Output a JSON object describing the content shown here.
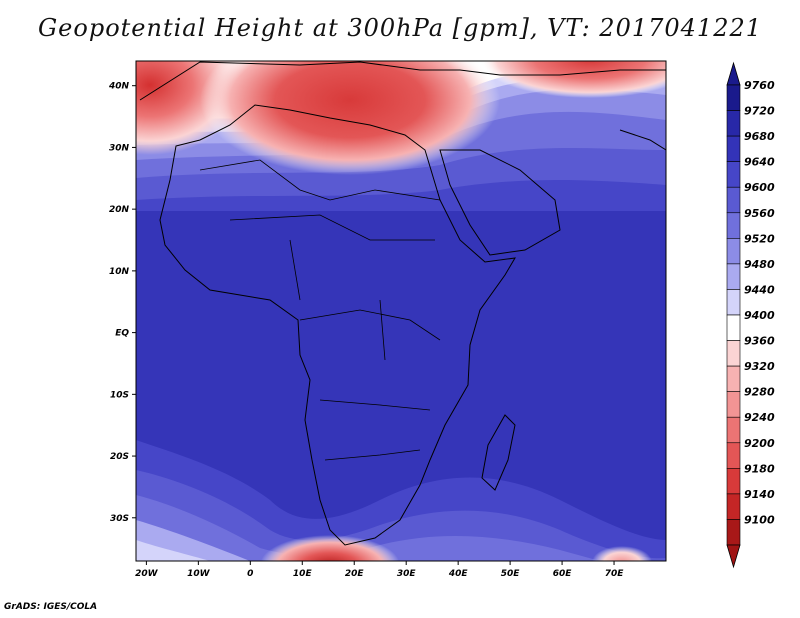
{
  "title": "Geopotential Height at 300hPa [gpm], VT: 2017041221",
  "credit": "GrADS: IGES/COLA",
  "map": {
    "lat_labels": [
      "40N",
      "30N",
      "20N",
      "10N",
      "EQ",
      "10S",
      "20S",
      "30S"
    ],
    "lon_labels": [
      "20W",
      "10W",
      "0",
      "10E",
      "20E",
      "30E",
      "40E",
      "50E",
      "60E",
      "70E"
    ],
    "lat_range": [
      -37,
      44
    ],
    "lon_range": [
      -22,
      80
    ]
  },
  "colorbar": {
    "levels": [
      "9760",
      "9720",
      "9680",
      "9640",
      "9600",
      "9560",
      "9520",
      "9480",
      "9440",
      "9400",
      "9360",
      "9320",
      "9280",
      "9240",
      "9200",
      "9180",
      "9140",
      "9100"
    ],
    "colors": [
      "#1a1a8c",
      "#2828a8",
      "#3333b8",
      "#4646c8",
      "#5a5ad2",
      "#7070dc",
      "#8c8ce6",
      "#aaaaf0",
      "#d4d4fa",
      "#ffffff",
      "#fbd4d4",
      "#f7b2b2",
      "#f29494",
      "#ec7474",
      "#e35656",
      "#d83a3a",
      "#c42626",
      "#a81818"
    ],
    "max_arrow_color": "#1a1a8c",
    "min_arrow_color": "#a01414"
  }
}
